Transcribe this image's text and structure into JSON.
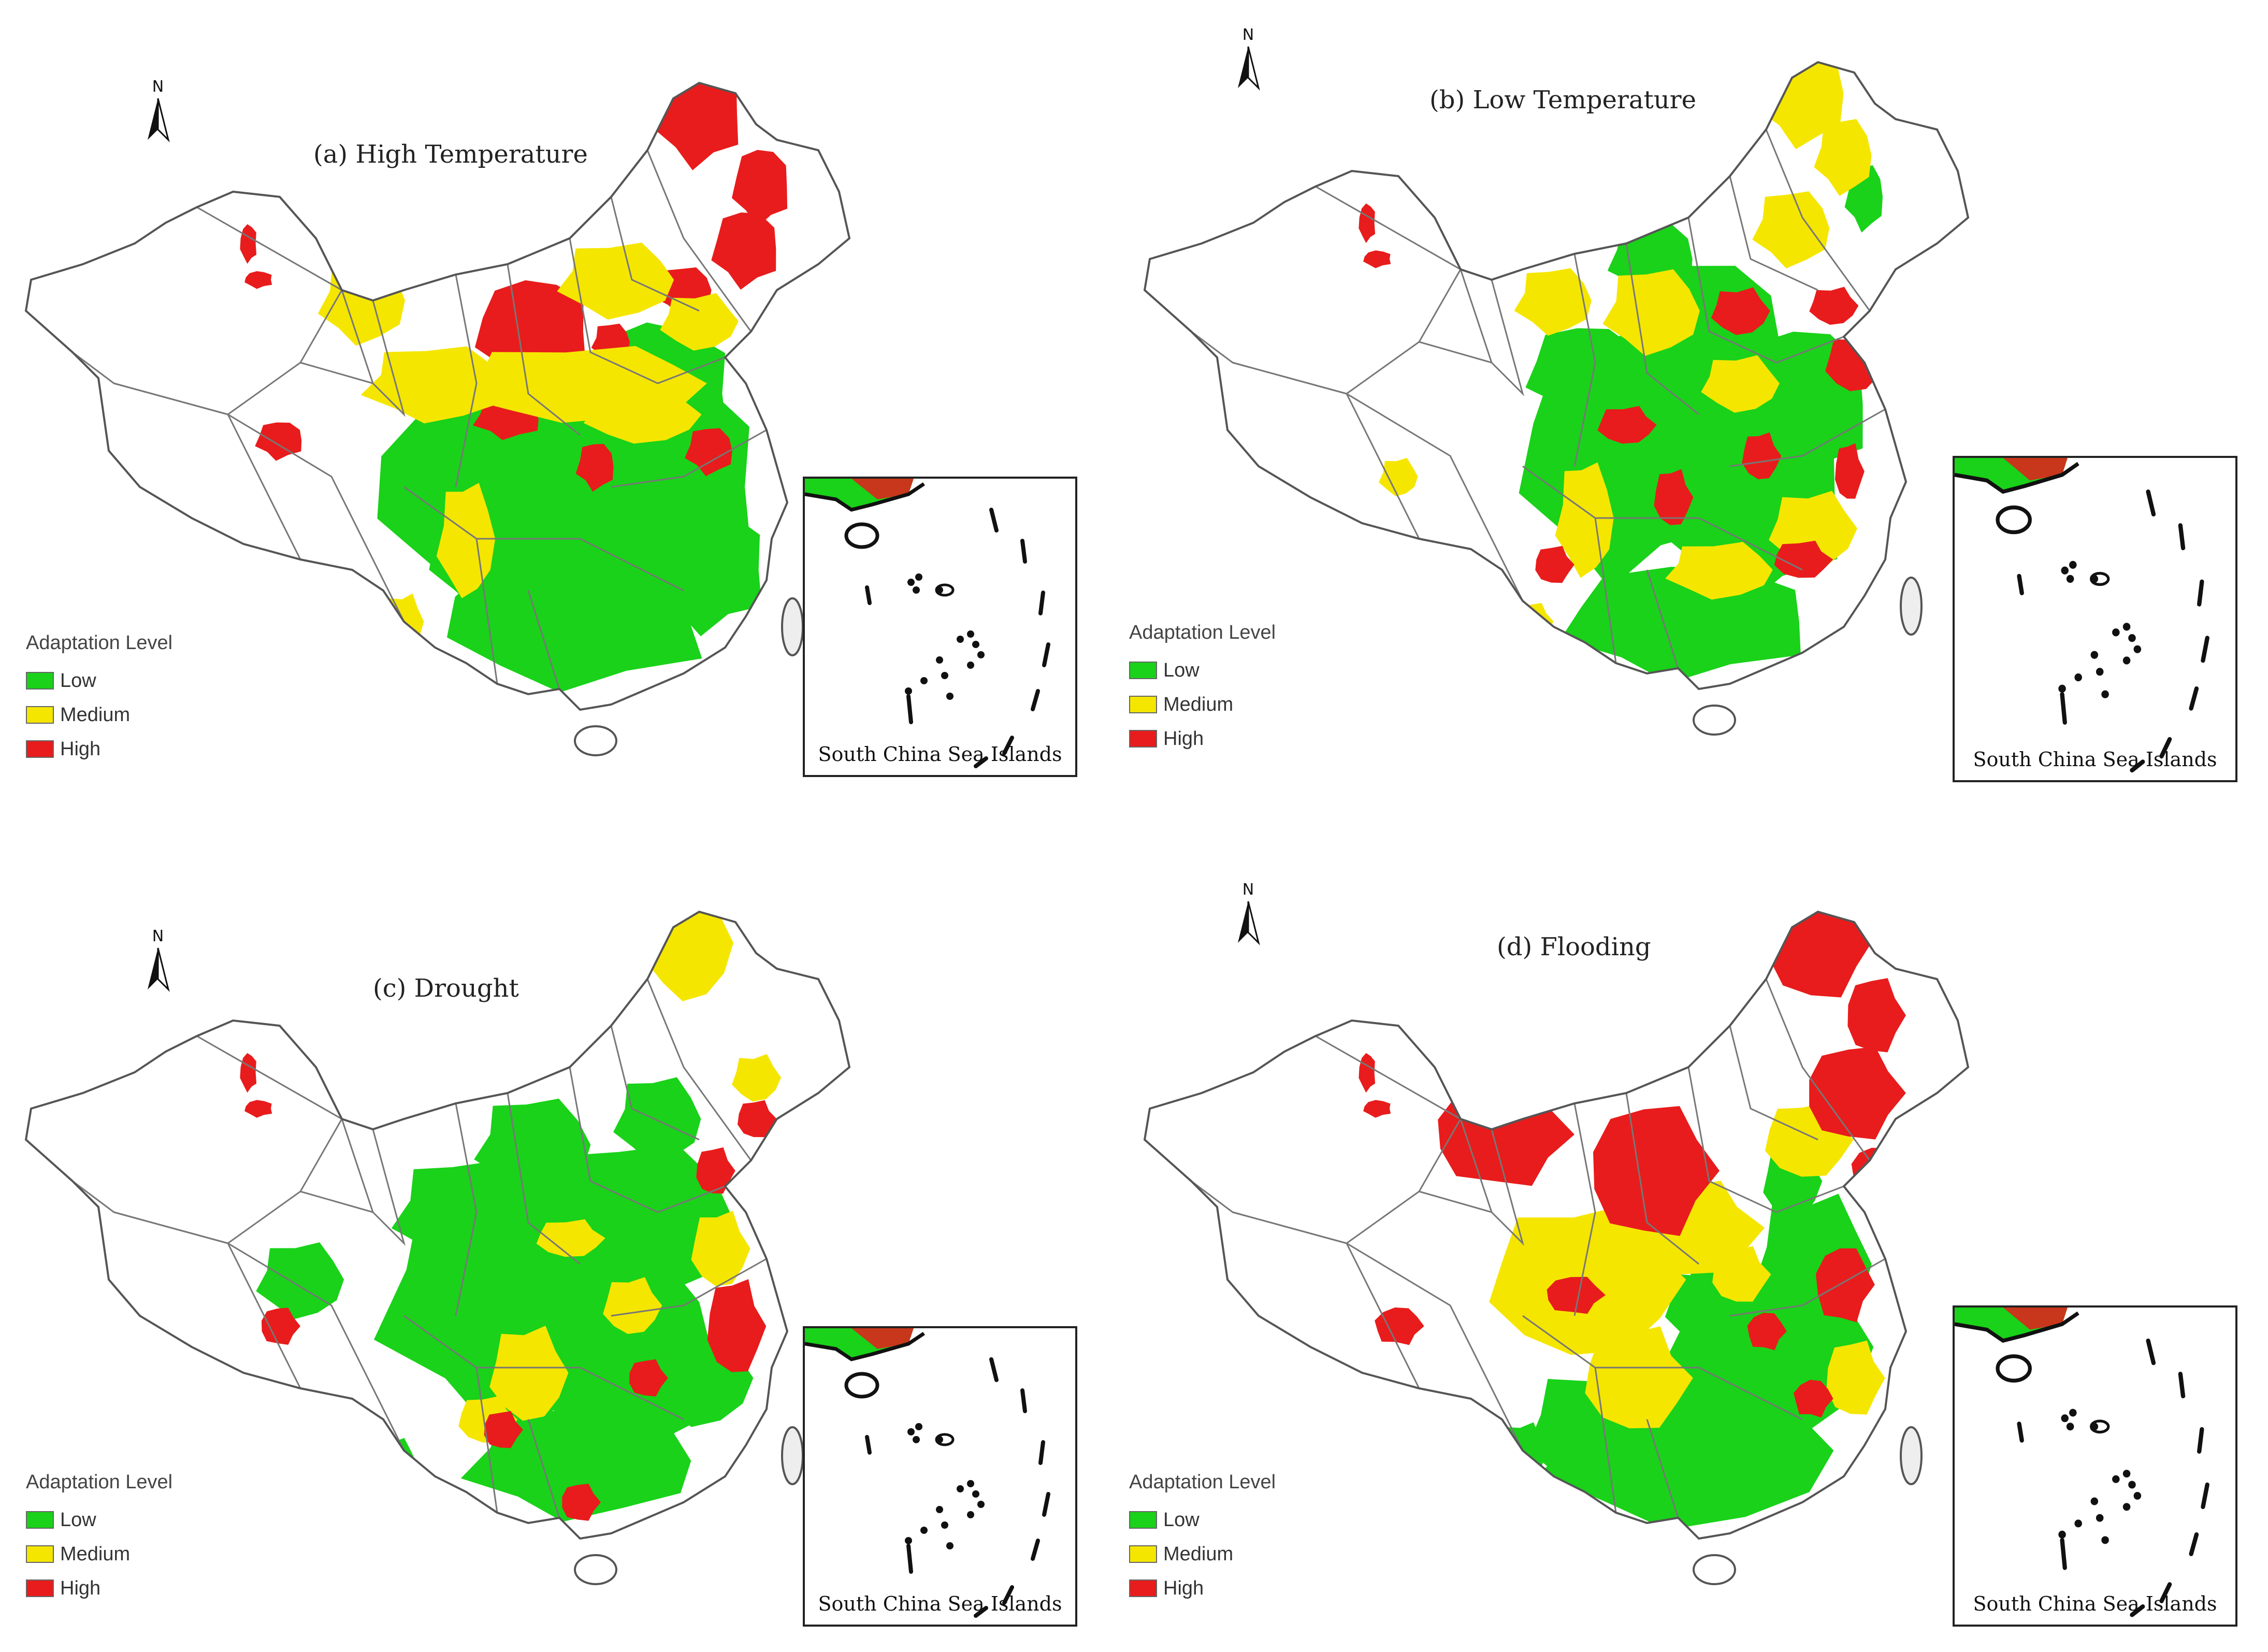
{
  "colors": {
    "low": "#19d219",
    "medium": "#f5e600",
    "high": "#e81c1c",
    "boundary": "#777777",
    "base": "#ffffff"
  },
  "north_label": "N",
  "legend": {
    "title": "Adaptation Level",
    "items": [
      {
        "label": "Low",
        "color": "#19d219"
      },
      {
        "label": "Medium",
        "color": "#f5e600"
      },
      {
        "label": "High",
        "color": "#e81c1c"
      }
    ]
  },
  "inset_label": "South China Sea Islands",
  "panels": [
    {
      "id": "a",
      "title": "(a) High Temperature",
      "pattern": "high_temp"
    },
    {
      "id": "b",
      "title": "(b) Low Temperature",
      "pattern": "low_temp"
    },
    {
      "id": "c",
      "title": "(c) Drought",
      "pattern": "drought"
    },
    {
      "id": "d",
      "title": "(d) Flooding",
      "pattern": "flooding"
    }
  ]
}
